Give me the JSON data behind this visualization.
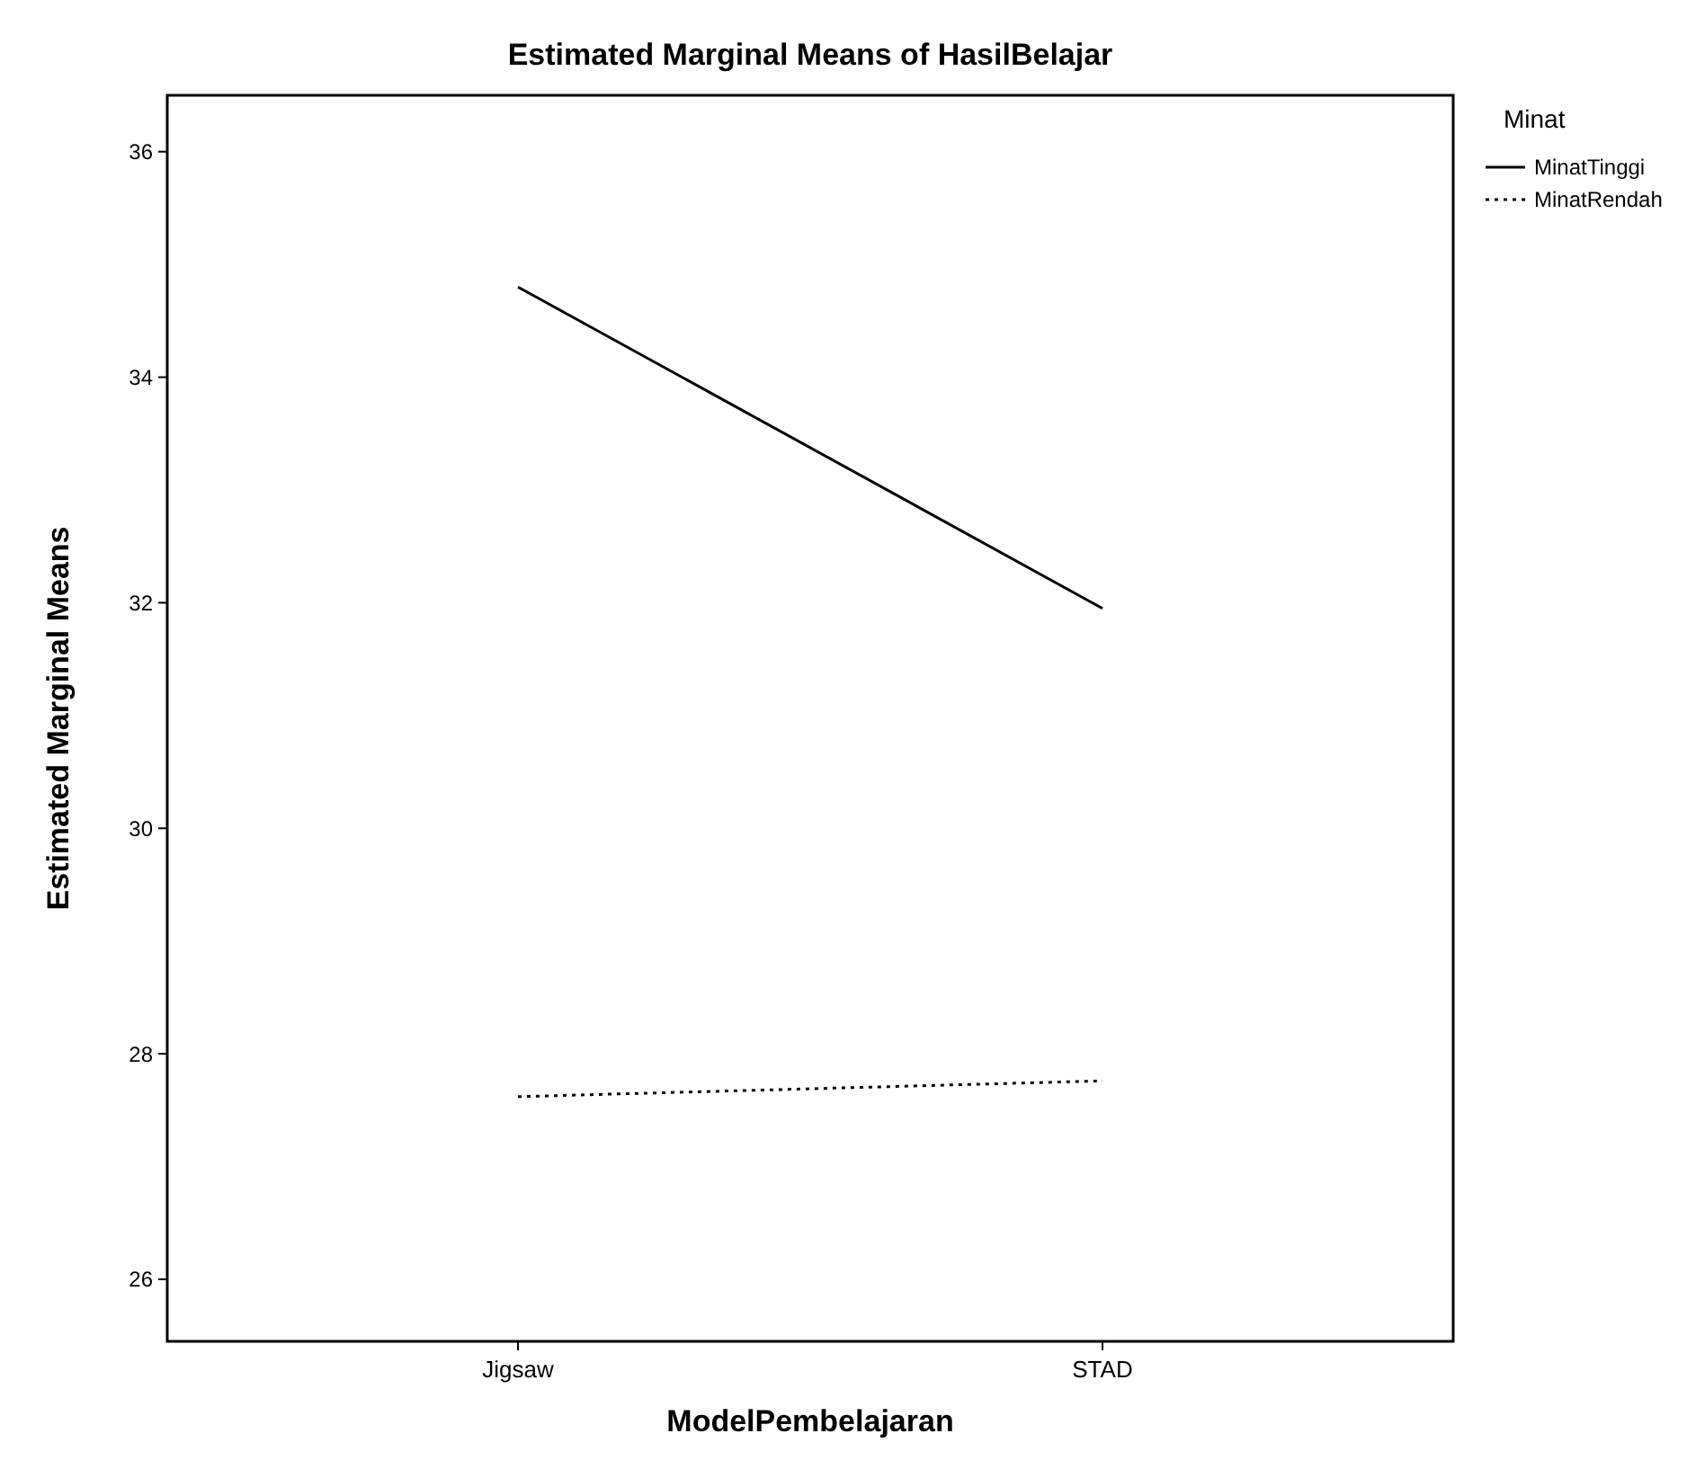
{
  "chart_data": {
    "type": "line",
    "title": "Estimated Marginal Means of HasilBelajar",
    "xlabel": "ModelPembelajaran",
    "ylabel": "Estimated Marginal Means",
    "legend_title": "Minat",
    "categories": [
      "Jigsaw",
      "STAD"
    ],
    "series": [
      {
        "name": "MinatTinggi",
        "color": "#000000",
        "values": [
          34.8,
          31.95
        ],
        "line_style": "solid"
      },
      {
        "name": "MinatRendah",
        "color": "#000000",
        "values": [
          27.62,
          27.76
        ],
        "line_style": "dotted"
      }
    ],
    "ylim": [
      25.45,
      36.5
    ],
    "yticks": [
      26,
      28,
      30,
      32,
      34,
      36
    ],
    "grid": false,
    "legend": "top right"
  }
}
